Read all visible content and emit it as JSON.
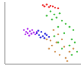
{
  "chart_data": {
    "type": "scatter",
    "xlim": [
      0,
      100
    ],
    "ylim": [
      0,
      100
    ],
    "tick_labels": false,
    "grid": false,
    "marker": "circle",
    "series": [
      {
        "color": "#ee2222",
        "x": [
          50,
          55,
          60,
          63,
          58,
          66,
          70,
          52
        ],
        "values": [
          95,
          96,
          94,
          93,
          92,
          91,
          90,
          93
        ]
      },
      {
        "color": "#33bb33",
        "x": [
          60,
          65,
          72,
          68,
          75,
          80,
          62,
          55,
          85,
          90,
          70,
          78,
          88,
          92,
          85,
          75,
          95,
          88,
          70,
          65
        ],
        "values": [
          85,
          80,
          82,
          75,
          70,
          65,
          72,
          78,
          60,
          55,
          60,
          50,
          40,
          35,
          30,
          25,
          20,
          15,
          35,
          45
        ]
      },
      {
        "color": "#aa22ee",
        "x": [
          25,
          28,
          30,
          33,
          35,
          38,
          40,
          27,
          32,
          36,
          42,
          30
        ],
        "values": [
          55,
          52,
          50,
          53,
          49,
          51,
          48,
          48,
          46,
          55,
          52,
          57
        ]
      },
      {
        "color": "#2222dd",
        "x": [
          42,
          45,
          48,
          50,
          53,
          47,
          55,
          44,
          52,
          58
        ],
        "values": [
          50,
          47,
          52,
          45,
          49,
          43,
          47,
          54,
          42,
          44
        ]
      },
      {
        "color": "#cc8844",
        "x": [
          55,
          60,
          62,
          58,
          66,
          72,
          80,
          85,
          78,
          68,
          90,
          82,
          75,
          64,
          70
        ],
        "values": [
          40,
          38,
          30,
          25,
          20,
          15,
          10,
          20,
          28,
          35,
          25,
          5,
          40,
          55,
          48
        ]
      }
    ]
  }
}
